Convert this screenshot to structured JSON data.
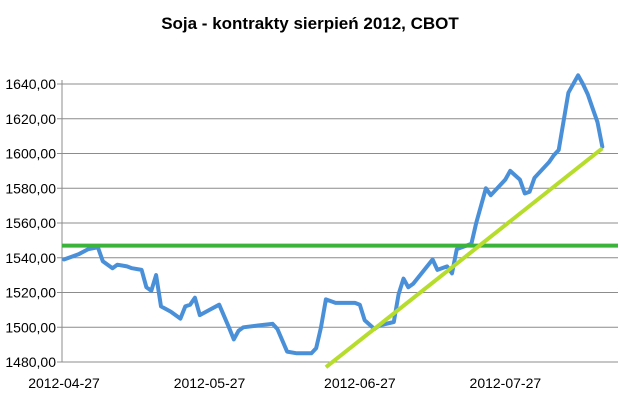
{
  "chart_data": {
    "type": "line",
    "title": "Soja - kontrakty sierpień 2012, CBOT",
    "xlabel": "",
    "ylabel": "",
    "ylim": [
      1480,
      1640
    ],
    "grid": "horizontal",
    "x_tick_labels": [
      "2012-04-27",
      "2012-05-27",
      "2012-06-27",
      "2012-07-27"
    ],
    "y_tick_labels": [
      "1480,00",
      "1500,00",
      "1520,00",
      "1540,00",
      "1560,00",
      "1580,00",
      "1600,00",
      "1620,00",
      "1640,00"
    ],
    "y_ticks": [
      1480,
      1500,
      1520,
      1540,
      1560,
      1580,
      1600,
      1620,
      1640
    ],
    "x_ticks": [
      "2012-04-27",
      "2012-05-27",
      "2012-06-27",
      "2012-07-27"
    ],
    "series": [
      {
        "type": "line",
        "color": "#4a90d9",
        "points": [
          [
            "2012-04-27",
            1539
          ],
          [
            "2012-04-30",
            1542
          ],
          [
            "2012-05-02",
            1545
          ],
          [
            "2012-05-04",
            1546
          ],
          [
            "2012-05-05",
            1538
          ],
          [
            "2012-05-07",
            1534
          ],
          [
            "2012-05-08",
            1536
          ],
          [
            "2012-05-10",
            1535
          ],
          [
            "2012-05-11",
            1534
          ],
          [
            "2012-05-13",
            1533
          ],
          [
            "2012-05-14",
            1523
          ],
          [
            "2012-05-15",
            1521
          ],
          [
            "2012-05-16",
            1530
          ],
          [
            "2012-05-17",
            1512
          ],
          [
            "2012-05-19",
            1509
          ],
          [
            "2012-05-21",
            1505
          ],
          [
            "2012-05-22",
            1512
          ],
          [
            "2012-05-23",
            1513
          ],
          [
            "2012-05-24",
            1517
          ],
          [
            "2012-05-25",
            1507
          ],
          [
            "2012-05-27",
            1510
          ],
          [
            "2012-05-29",
            1513
          ],
          [
            "2012-05-31",
            1500
          ],
          [
            "2012-06-01",
            1493
          ],
          [
            "2012-06-02",
            1498
          ],
          [
            "2012-06-03",
            1500
          ],
          [
            "2012-06-06",
            1501
          ],
          [
            "2012-06-09",
            1502
          ],
          [
            "2012-06-10",
            1499
          ],
          [
            "2012-06-12",
            1486
          ],
          [
            "2012-06-14",
            1485
          ],
          [
            "2012-06-17",
            1485
          ],
          [
            "2012-06-18",
            1488
          ],
          [
            "2012-06-19",
            1500
          ],
          [
            "2012-06-20",
            1516
          ],
          [
            "2012-06-22",
            1514
          ],
          [
            "2012-06-26",
            1514
          ],
          [
            "2012-06-27",
            1513
          ],
          [
            "2012-06-28",
            1504
          ],
          [
            "2012-06-30",
            1499
          ],
          [
            "2012-07-01",
            1501
          ],
          [
            "2012-07-04",
            1503
          ],
          [
            "2012-07-05",
            1519
          ],
          [
            "2012-07-06",
            1528
          ],
          [
            "2012-07-07",
            1523
          ],
          [
            "2012-07-08",
            1525
          ],
          [
            "2012-07-10",
            1532
          ],
          [
            "2012-07-12",
            1539
          ],
          [
            "2012-07-13",
            1533
          ],
          [
            "2012-07-15",
            1535
          ],
          [
            "2012-07-16",
            1531
          ],
          [
            "2012-07-17",
            1545
          ],
          [
            "2012-07-19",
            1547
          ],
          [
            "2012-07-20",
            1548
          ],
          [
            "2012-07-21",
            1560
          ],
          [
            "2012-07-23",
            1580
          ],
          [
            "2012-07-24",
            1576
          ],
          [
            "2012-07-27",
            1585
          ],
          [
            "2012-07-28",
            1590
          ],
          [
            "2012-07-30",
            1585
          ],
          [
            "2012-07-31",
            1577
          ],
          [
            "2012-08-01",
            1578
          ],
          [
            "2012-08-02",
            1586
          ],
          [
            "2012-08-05",
            1595
          ],
          [
            "2012-08-06",
            1599
          ],
          [
            "2012-08-07",
            1602
          ],
          [
            "2012-08-09",
            1635
          ],
          [
            "2012-08-11",
            1645
          ],
          [
            "2012-08-12",
            1640
          ],
          [
            "2012-08-13",
            1634
          ],
          [
            "2012-08-14",
            1626
          ],
          [
            "2012-08-15",
            1618
          ],
          [
            "2012-08-16",
            1604
          ]
        ]
      },
      {
        "type": "horizontal-line",
        "color": "#3cb43c",
        "value": 1547
      },
      {
        "type": "trend-line",
        "color": "#b7dd2c",
        "points": [
          [
            "2012-06-20",
            1477
          ],
          [
            "2012-08-16",
            1603
          ]
        ]
      }
    ]
  }
}
